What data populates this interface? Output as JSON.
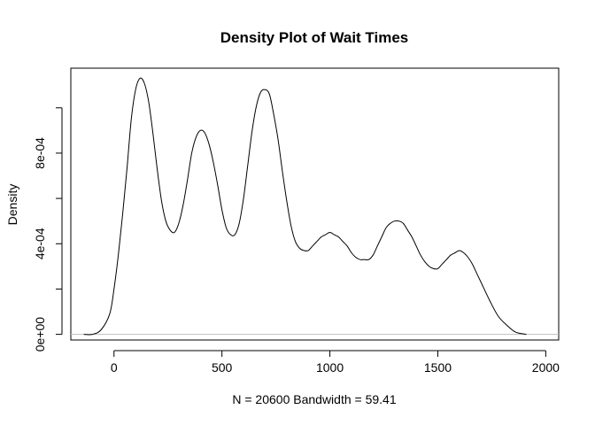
{
  "chart_data": {
    "type": "line",
    "title": "Density Plot of Wait Times",
    "xlabel": "N = 20600   Bandwidth = 59.41",
    "ylabel": "Density",
    "xlim": [
      -200,
      2060
    ],
    "ylim": [
      -2.5e-05,
      0.001175
    ],
    "x_ticks": [
      0,
      500,
      1000,
      1500,
      2000
    ],
    "x_tick_labels": [
      "0",
      "500",
      "1000",
      "1500",
      "2000"
    ],
    "y_ticks": [
      0,
      0.0002,
      0.0004,
      0.0006,
      0.0008,
      0.001
    ],
    "y_tick_labels": [
      "0e+00",
      "",
      "4e-04",
      "",
      "8e-04",
      ""
    ],
    "baseline": 0,
    "baseline_color": "#bebebe",
    "line_color": "#000000",
    "grid": false,
    "series": [
      {
        "x": [
          -140,
          -100,
          -60,
          -20,
          0,
          20,
          40,
          60,
          80,
          100,
          120,
          140,
          160,
          180,
          200,
          220,
          240,
          260,
          280,
          300,
          320,
          340,
          360,
          380,
          400,
          420,
          440,
          460,
          480,
          500,
          520,
          540,
          560,
          580,
          600,
          620,
          640,
          660,
          680,
          700,
          720,
          740,
          760,
          780,
          800,
          820,
          840,
          860,
          880,
          900,
          920,
          940,
          960,
          980,
          1000,
          1020,
          1040,
          1060,
          1080,
          1100,
          1120,
          1140,
          1160,
          1180,
          1200,
          1220,
          1240,
          1260,
          1280,
          1300,
          1320,
          1340,
          1360,
          1380,
          1400,
          1420,
          1440,
          1460,
          1480,
          1500,
          1520,
          1540,
          1560,
          1580,
          1600,
          1620,
          1640,
          1660,
          1680,
          1700,
          1740,
          1780,
          1820,
          1860,
          1910
        ],
        "y": [
          0.0,
          0.0,
          2e-05,
          9e-05,
          0.0002,
          0.00035,
          0.00053,
          0.00073,
          0.00095,
          0.00108,
          0.00113,
          0.00111,
          0.00103,
          0.00089,
          0.00073,
          0.00059,
          0.0005,
          0.00046,
          0.00045,
          0.00049,
          0.00057,
          0.00068,
          0.0008,
          0.00087,
          0.0009,
          0.00089,
          0.00084,
          0.00076,
          0.00066,
          0.00055,
          0.00047,
          0.00044,
          0.00044,
          0.00049,
          0.0006,
          0.00075,
          0.0009,
          0.00101,
          0.00107,
          0.00108,
          0.00106,
          0.00097,
          0.00086,
          0.00072,
          0.00059,
          0.00048,
          0.00041,
          0.00038,
          0.00037,
          0.00037,
          0.00039,
          0.00041,
          0.00043,
          0.00044,
          0.00045,
          0.00044,
          0.00043,
          0.00041,
          0.00039,
          0.00036,
          0.00034,
          0.00033,
          0.00033,
          0.00033,
          0.00035,
          0.00039,
          0.00043,
          0.00047,
          0.00049,
          0.0005,
          0.0005,
          0.00049,
          0.00046,
          0.00043,
          0.00039,
          0.00035,
          0.00032,
          0.0003,
          0.00029,
          0.00029,
          0.00031,
          0.00033,
          0.00035,
          0.00036,
          0.00037,
          0.00036,
          0.00034,
          0.00031,
          0.00027,
          0.00023,
          0.00015,
          8e-05,
          4e-05,
          1e-05,
          0.0
        ]
      }
    ]
  }
}
